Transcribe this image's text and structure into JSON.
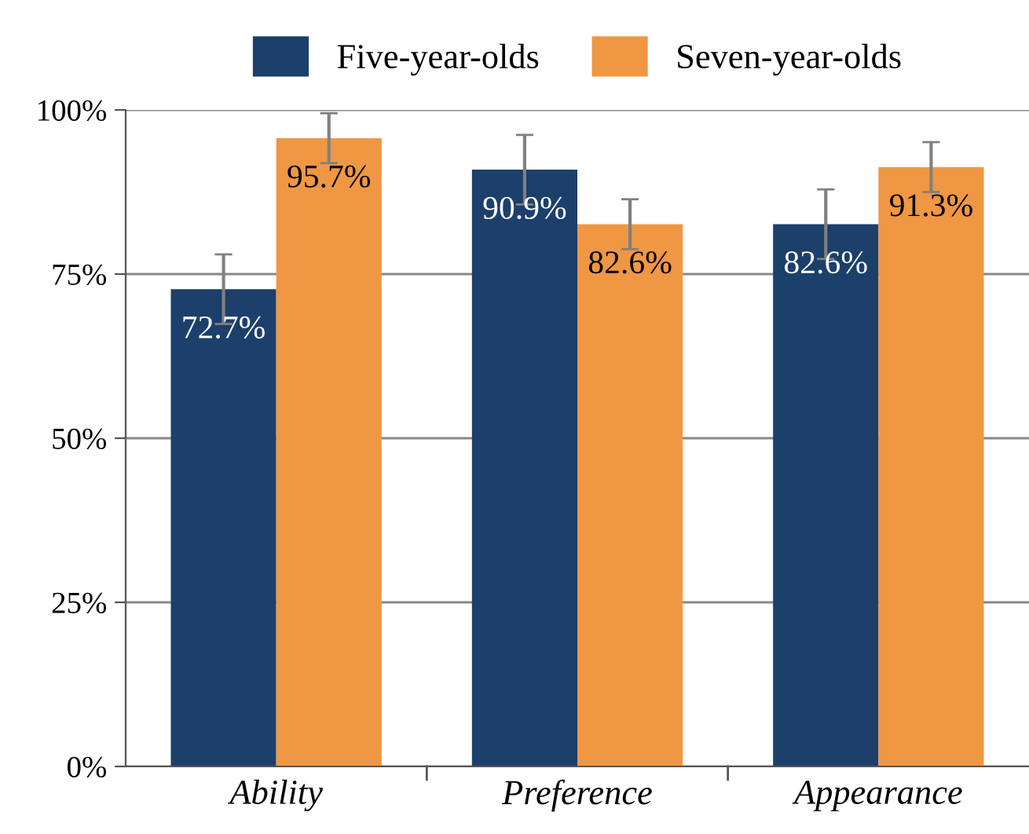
{
  "chart_data": {
    "type": "bar",
    "categories": [
      "Ability",
      "Preference",
      "Appearance"
    ],
    "series": [
      {
        "name": "Five-year-olds",
        "color": "#1c3f6b",
        "values": [
          72.7,
          90.9,
          82.6
        ],
        "errors": [
          5.3,
          5.3,
          5.3
        ],
        "value_labels": [
          "72.7%",
          "90.9%",
          "82.6%"
        ]
      },
      {
        "name": "Seven-year-olds",
        "color": "#f09743",
        "values": [
          95.7,
          82.6,
          91.3
        ],
        "errors": [
          3.8,
          3.8,
          3.8
        ],
        "value_labels": [
          "95.7%",
          "82.6%",
          "91.3%"
        ]
      }
    ],
    "ylim": [
      0,
      100
    ],
    "yticks": [
      {
        "value": 0,
        "label": "0%"
      },
      {
        "value": 25,
        "label": "25%"
      },
      {
        "value": 50,
        "label": "50%"
      },
      {
        "value": 75,
        "label": "75%"
      },
      {
        "value": 100,
        "label": "100%"
      }
    ],
    "grid": "y",
    "legend": "top"
  }
}
